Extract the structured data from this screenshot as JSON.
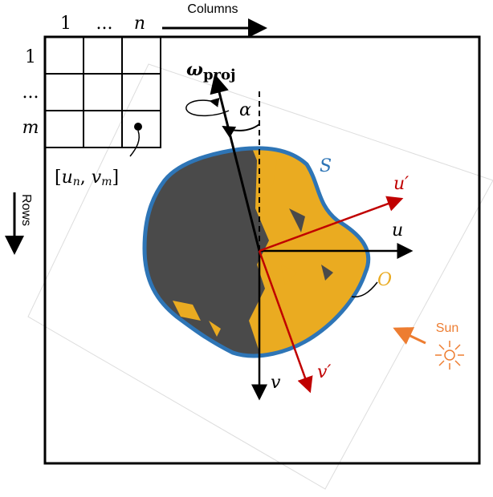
{
  "grid": {
    "column_labels": [
      "1",
      "...",
      "n"
    ],
    "row_labels": [
      "1",
      "...",
      "m"
    ],
    "columns_label": "Columns",
    "rows_label": "Rows",
    "point_label": [
      "[",
      "u",
      "n",
      ", ",
      "v",
      "m",
      "]"
    ]
  },
  "axes": {
    "omega": [
      "ω",
      "proj"
    ],
    "alpha": "α",
    "u_prime": "u′",
    "u": "u",
    "v": "v",
    "v_prime": "v′"
  },
  "object": {
    "silhouette": "S",
    "body": "O"
  },
  "sun": "Sun"
}
